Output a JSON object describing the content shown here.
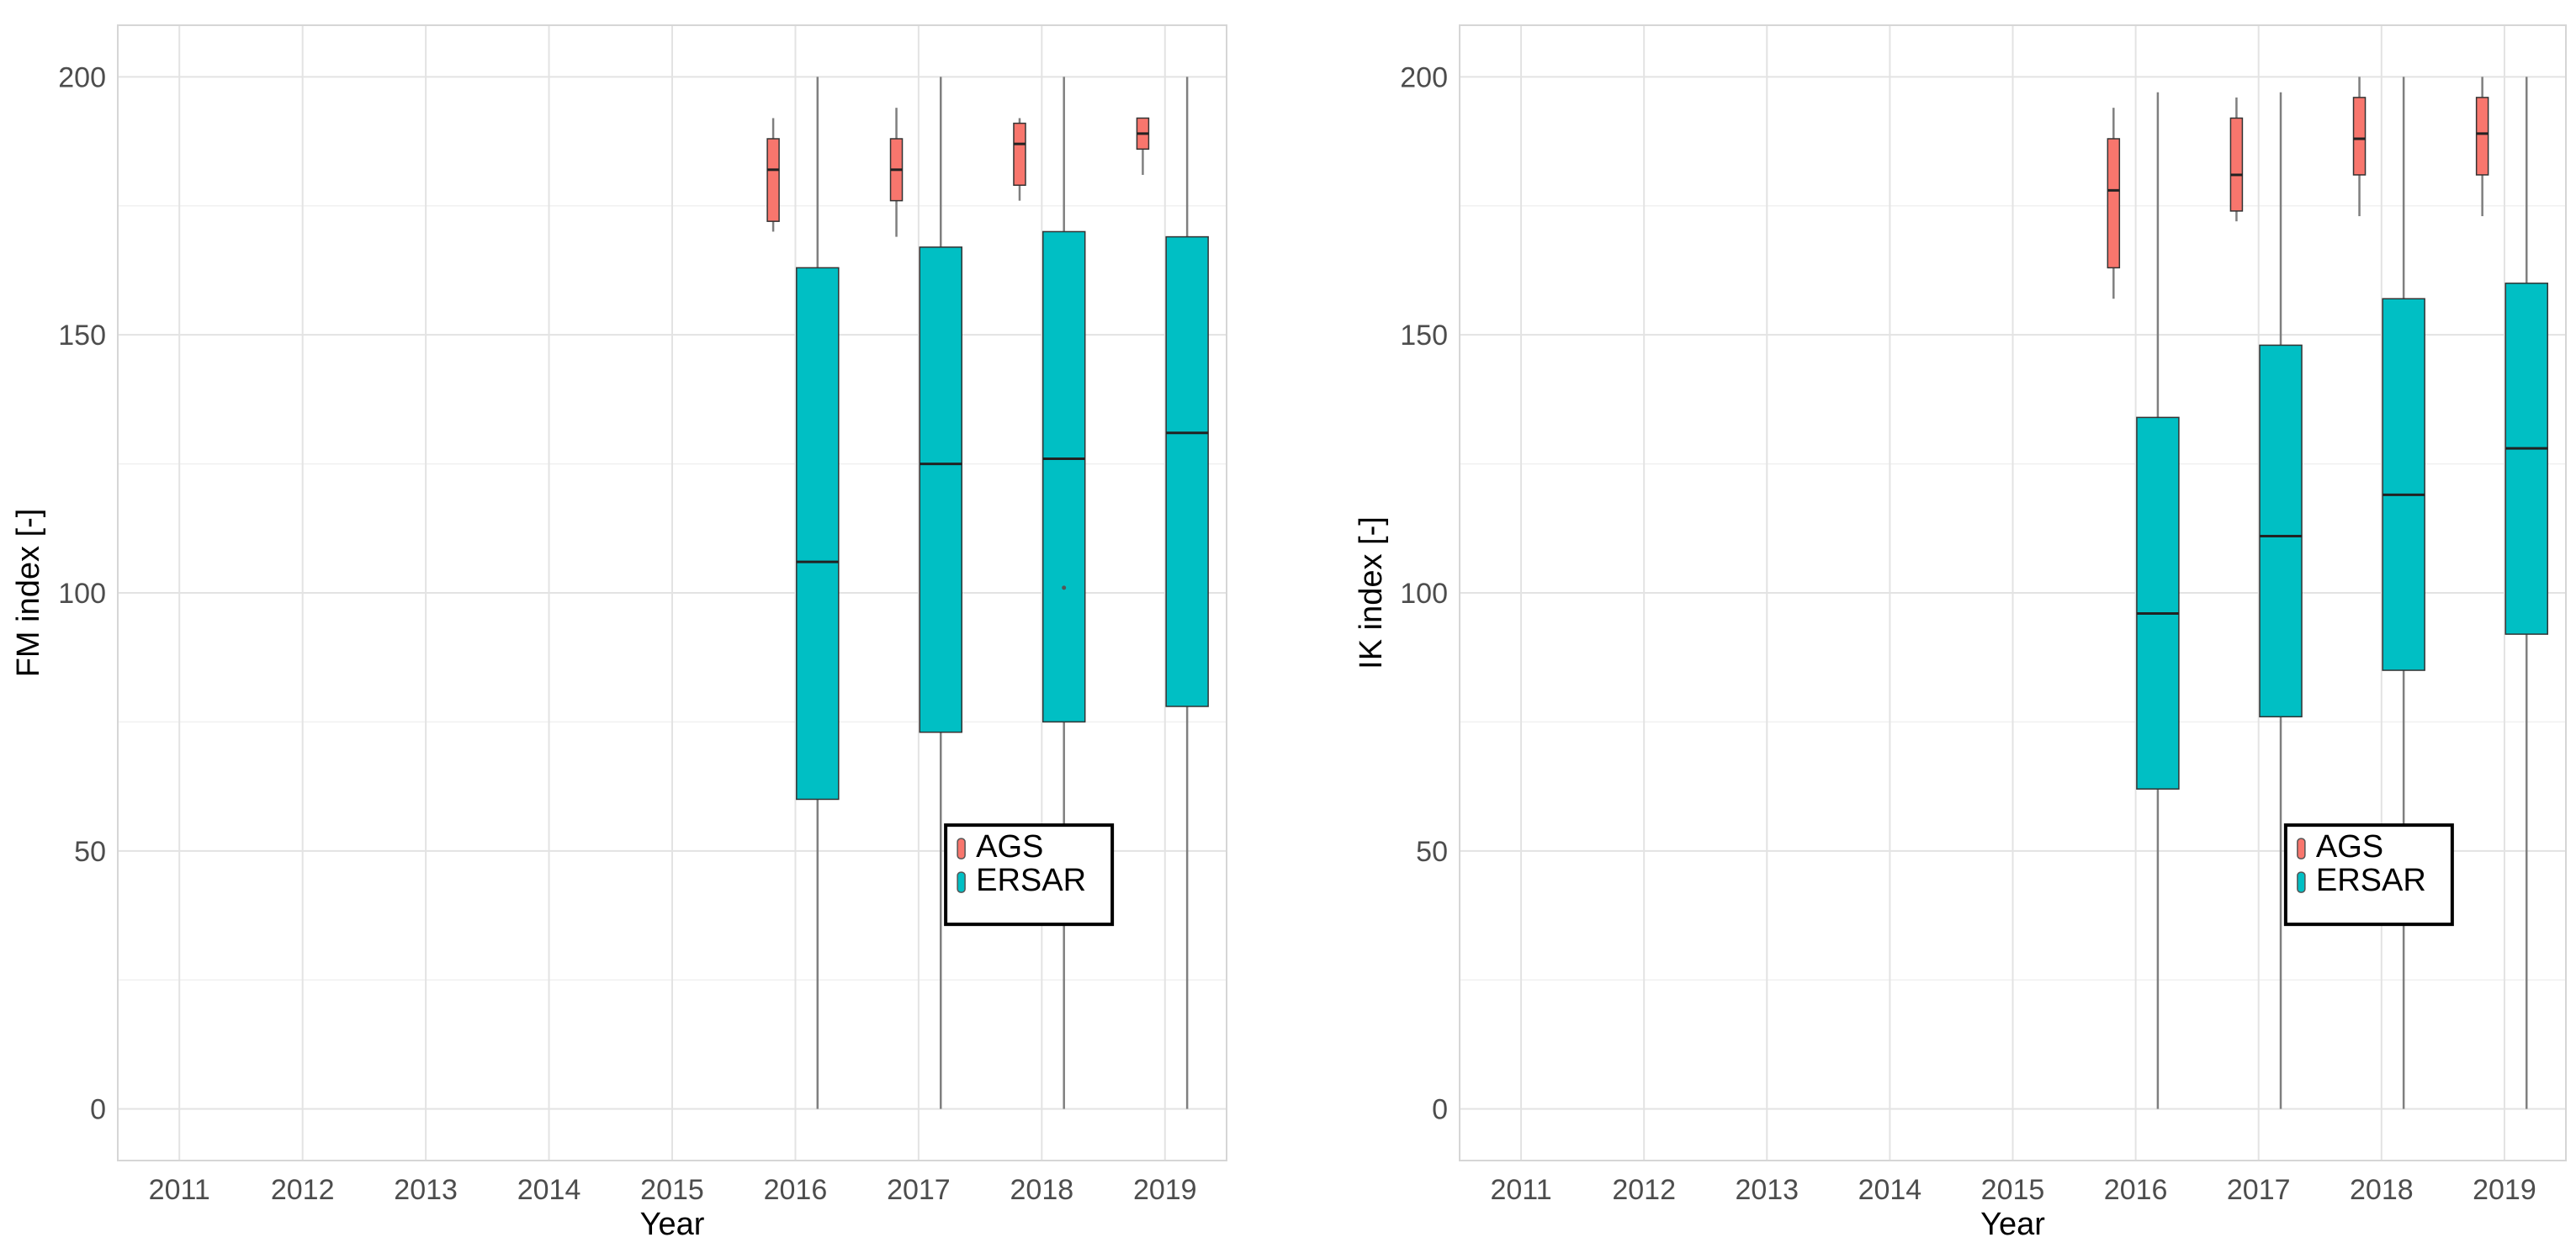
{
  "chart_data": [
    {
      "type": "box",
      "xlabel": "Year",
      "ylabel": "FM index [-]",
      "categories": [
        "2011",
        "2012",
        "2013",
        "2014",
        "2015",
        "2016",
        "2017",
        "2018",
        "2019"
      ],
      "ylim": [
        -10,
        210
      ],
      "yticks": [
        0,
        50,
        100,
        150,
        200
      ],
      "grid": true,
      "legend_position": "inside-bottom-right",
      "series": [
        {
          "name": "AGS",
          "color": "#F8766D",
          "boxes": [
            {
              "category": "2016",
              "min": 170,
              "q1": 172,
              "median": 182,
              "q3": 188,
              "max": 192
            },
            {
              "category": "2017",
              "min": 169,
              "q1": 176,
              "median": 182,
              "q3": 188,
              "max": 194
            },
            {
              "category": "2018",
              "min": 176,
              "q1": 179,
              "median": 187,
              "q3": 191,
              "max": 192
            },
            {
              "category": "2019",
              "min": 181,
              "q1": 186,
              "median": 189,
              "q3": 192,
              "max": 192
            }
          ]
        },
        {
          "name": "ERSAR",
          "color": "#00BFC4",
          "boxes": [
            {
              "category": "2016",
              "min": 0,
              "q1": 60,
              "median": 106,
              "q3": 163,
              "max": 200
            },
            {
              "category": "2017",
              "min": 0,
              "q1": 73,
              "median": 125,
              "q3": 167,
              "max": 200
            },
            {
              "category": "2018",
              "min": 0,
              "q1": 75,
              "median": 126,
              "q3": 170,
              "max": 200,
              "outliers": [
                101
              ]
            },
            {
              "category": "2019",
              "min": 0,
              "q1": 78,
              "median": 131,
              "q3": 169,
              "max": 200
            }
          ]
        }
      ]
    },
    {
      "type": "box",
      "xlabel": "Year",
      "ylabel": "IK index [-]",
      "categories": [
        "2011",
        "2012",
        "2013",
        "2014",
        "2015",
        "2016",
        "2017",
        "2018",
        "2019"
      ],
      "ylim": [
        -10,
        210
      ],
      "yticks": [
        0,
        50,
        100,
        150,
        200
      ],
      "grid": true,
      "legend_position": "inside-bottom-right",
      "series": [
        {
          "name": "AGS",
          "color": "#F8766D",
          "boxes": [
            {
              "category": "2016",
              "min": 157,
              "q1": 163,
              "median": 178,
              "q3": 188,
              "max": 194
            },
            {
              "category": "2017",
              "min": 172,
              "q1": 174,
              "median": 181,
              "q3": 192,
              "max": 196
            },
            {
              "category": "2018",
              "min": 173,
              "q1": 181,
              "median": 188,
              "q3": 196,
              "max": 200
            },
            {
              "category": "2019",
              "min": 173,
              "q1": 181,
              "median": 189,
              "q3": 196,
              "max": 200
            }
          ]
        },
        {
          "name": "ERSAR",
          "color": "#00BFC4",
          "boxes": [
            {
              "category": "2016",
              "min": 0,
              "q1": 62,
              "median": 96,
              "q3": 134,
              "max": 197
            },
            {
              "category": "2017",
              "min": 0,
              "q1": 76,
              "median": 111,
              "q3": 148,
              "max": 197
            },
            {
              "category": "2018",
              "min": 0,
              "q1": 85,
              "median": 119,
              "q3": 157,
              "max": 200
            },
            {
              "category": "2019",
              "min": 0,
              "q1": 92,
              "median": 128,
              "q3": 160,
              "max": 200
            }
          ]
        }
      ]
    }
  ]
}
